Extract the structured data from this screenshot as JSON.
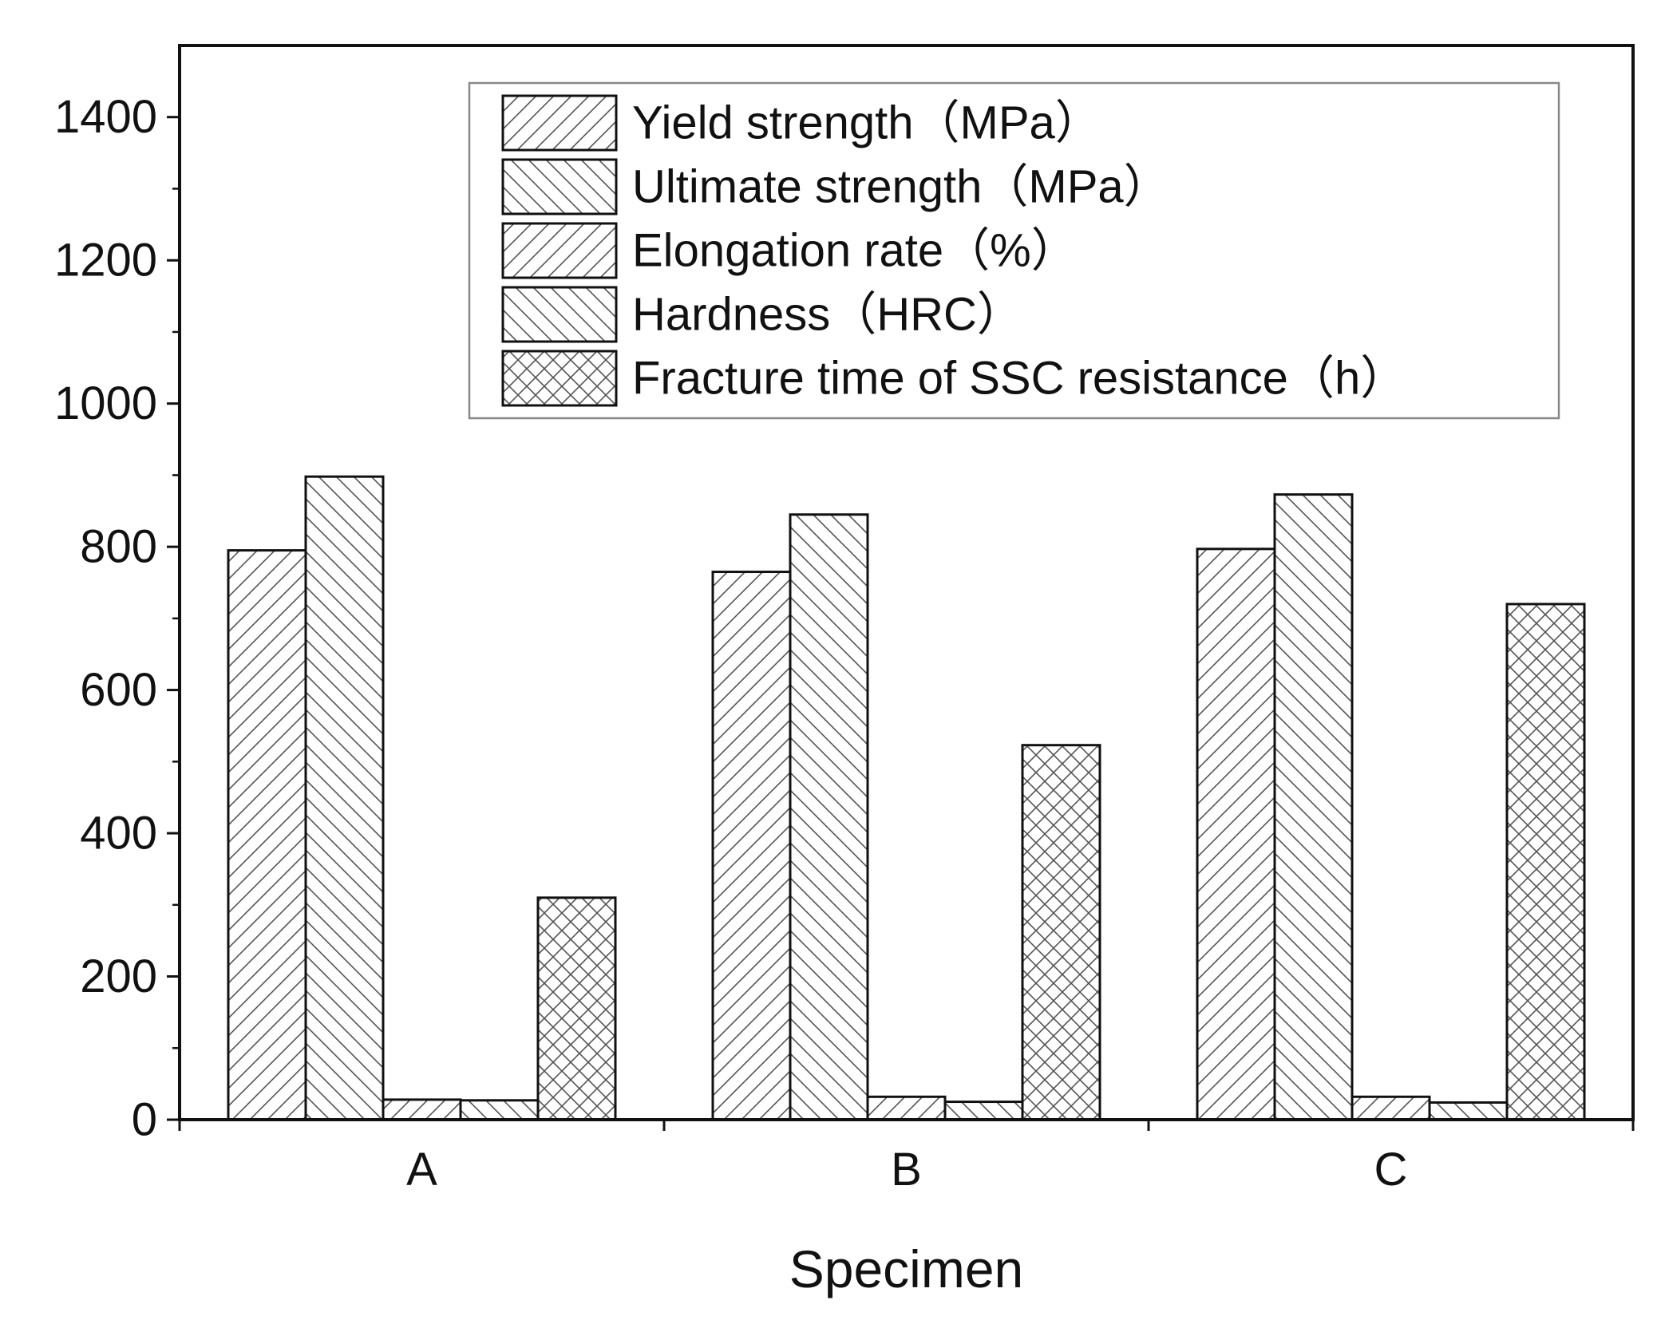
{
  "chart_data": {
    "type": "bar",
    "title": "",
    "xlabel": "Specimen",
    "ylabel": "",
    "categories": [
      "A",
      "B",
      "C"
    ],
    "ylim": [
      0,
      1500
    ],
    "yticks": [
      0,
      200,
      400,
      600,
      800,
      1000,
      1200,
      1400
    ],
    "grid": false,
    "legend_position": "top-right",
    "series": [
      {
        "name": "Yield strength（MPa）",
        "pattern": "diagonal-forward",
        "values": [
          795,
          765,
          797
        ]
      },
      {
        "name": "Ultimate strength（MPa）",
        "pattern": "diagonal-backward",
        "values": [
          898,
          845,
          873
        ]
      },
      {
        "name": "Elongation rate（%）",
        "pattern": "diagonal-forward",
        "values": [
          28,
          32,
          32
        ]
      },
      {
        "name": "Hardness（HRC）",
        "pattern": "diagonal-backward",
        "values": [
          27,
          25,
          24
        ]
      },
      {
        "name": "Fracture time of SSC resistance（h）",
        "pattern": "crosshatch",
        "values": [
          310,
          523,
          720
        ]
      }
    ],
    "colors": {
      "bar_fill": "#ffffff",
      "bar_stroke": "#111111",
      "hatch": "#555555",
      "axis": "#111111",
      "legend_border": "#888888"
    }
  }
}
